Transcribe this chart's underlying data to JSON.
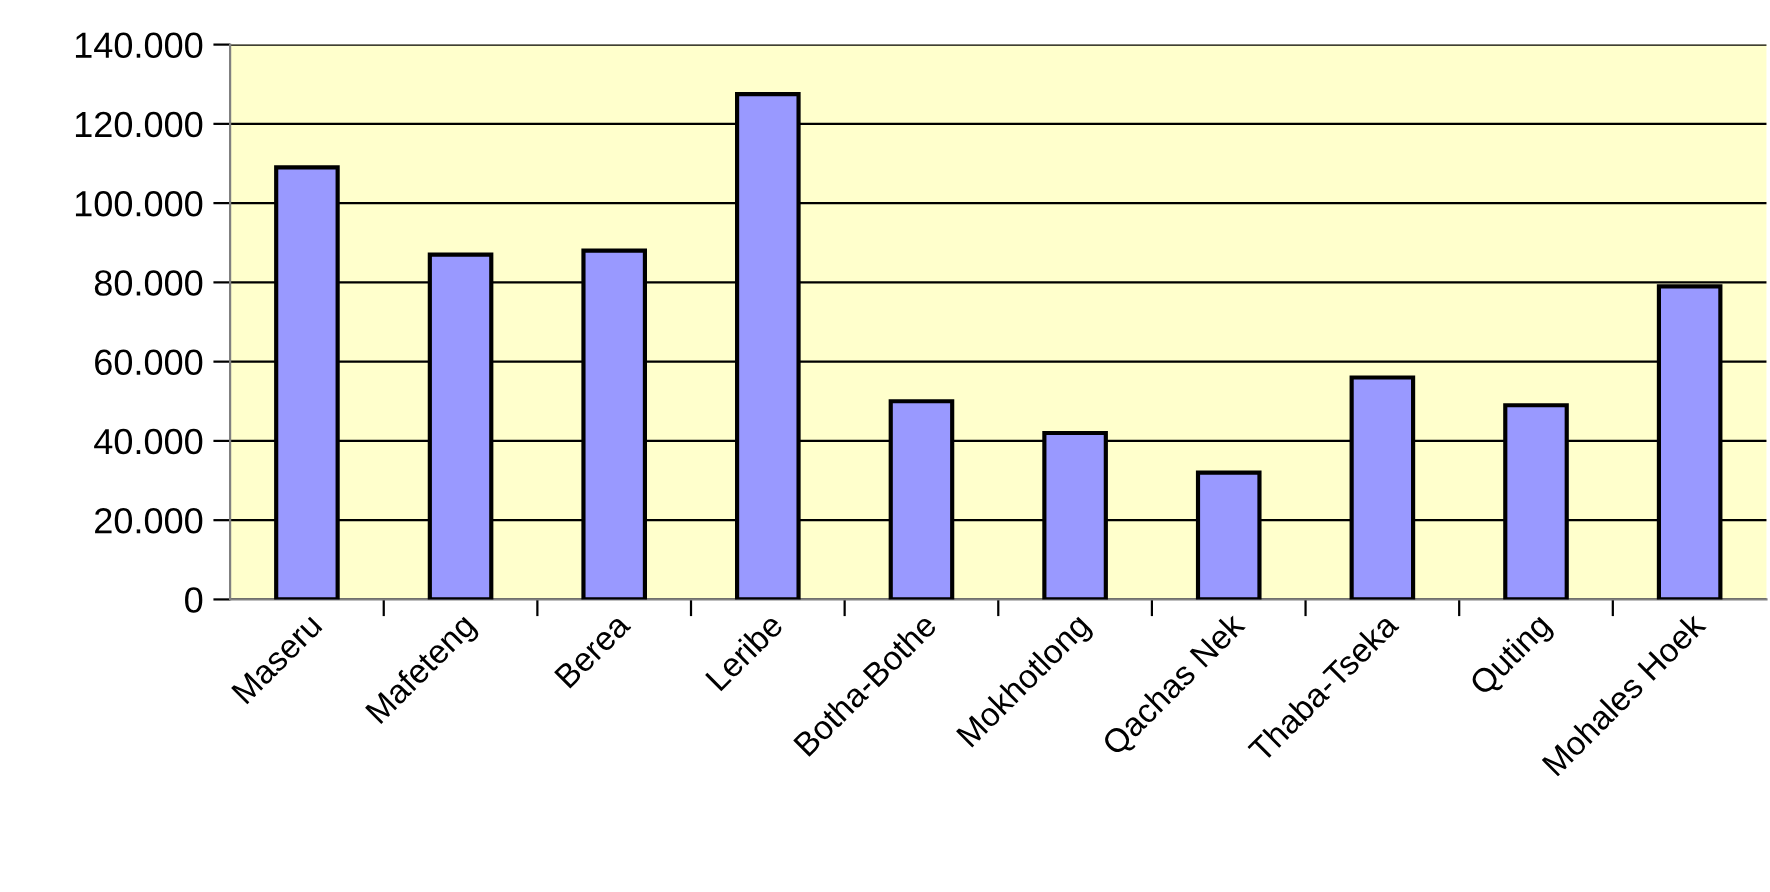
{
  "chart_data": {
    "type": "bar",
    "categories": [
      "Maseru",
      "Mafeteng",
      "Berea",
      "Leribe",
      "Botha-Bothe",
      "Mokhotlong",
      "Qachas Nek",
      "Thaba-Tseka",
      "Quting",
      "Mohales Hoek"
    ],
    "values": [
      109000,
      87000,
      88000,
      127500,
      50000,
      42000,
      32000,
      56000,
      49000,
      79000
    ],
    "color": "#9999ff",
    "ylim": [
      0,
      140000
    ],
    "yticks": [
      0,
      {
        "value": 20000,
        "label": "20.000"
      },
      {
        "value": 40000,
        "label": "40.000"
      },
      {
        "value": 60000,
        "label": "60.000"
      },
      {
        "value": 80000,
        "label": "80.000"
      },
      {
        "value": 100000,
        "label": "100.000"
      },
      {
        "value": 120000,
        "label": "120.000"
      },
      {
        "value": 140000,
        "label": "140.000"
      }
    ],
    "grid": "y"
  }
}
